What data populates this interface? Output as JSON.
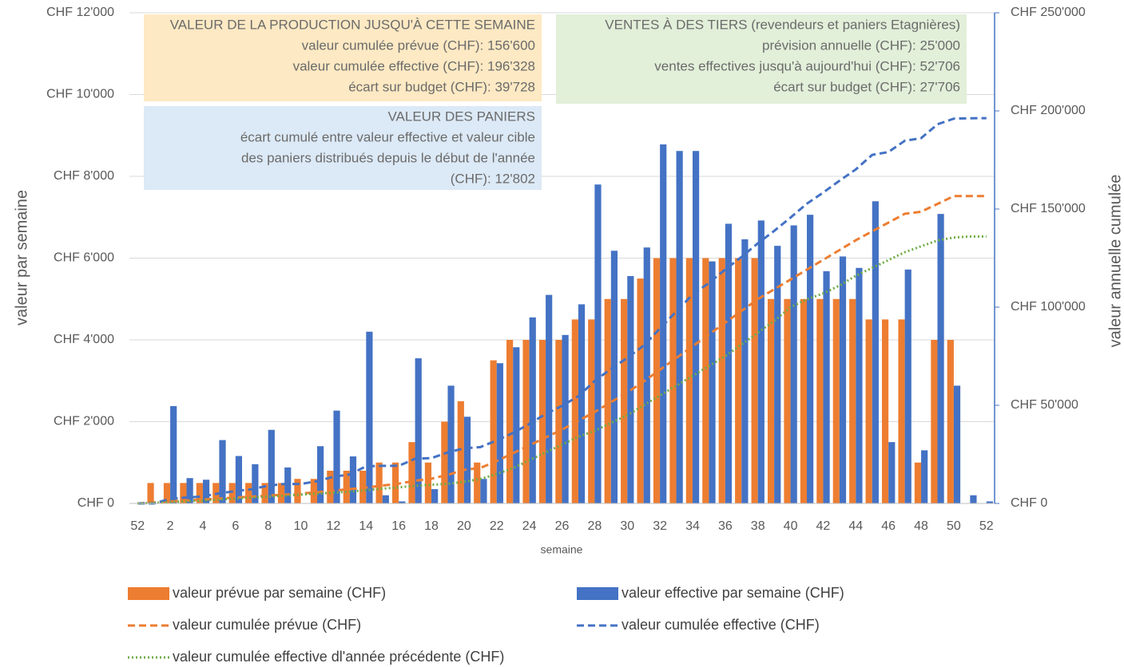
{
  "chart_data": {
    "type": "combo",
    "x_label": "semaine",
    "y_label": "valeur par semaine",
    "y2_label": "valeur annuelle cumulée",
    "categories": [
      "52",
      null,
      "2",
      null,
      "4",
      null,
      "6",
      null,
      "8",
      null,
      "10",
      null,
      "12",
      null,
      "14",
      null,
      "16",
      null,
      "18",
      null,
      "20",
      null,
      "22",
      null,
      "24",
      null,
      "26",
      null,
      "28",
      null,
      "30",
      null,
      "32",
      null,
      "34",
      null,
      "36",
      null,
      "38",
      null,
      "40",
      null,
      "42",
      null,
      "44",
      null,
      "46",
      null,
      "48",
      null,
      "50",
      null,
      "52"
    ],
    "ylim": [
      0,
      12000
    ],
    "yticks": [
      {
        "value": 0,
        "label": "CHF 0"
      },
      {
        "value": 2000,
        "label": "CHF 2'000"
      },
      {
        "value": 4000,
        "label": "CHF 4'000"
      },
      {
        "value": 6000,
        "label": "CHF 6'000"
      },
      {
        "value": 8000,
        "label": "CHF 8'000"
      },
      {
        "value": 10000,
        "label": "CHF 10'000"
      },
      {
        "value": 12000,
        "label": "CHF 12'000"
      }
    ],
    "y2lim": [
      0,
      250000
    ],
    "y2ticks": [
      {
        "value": 0,
        "label": "CHF 0"
      },
      {
        "value": 50000,
        "label": "CHF 50'000"
      },
      {
        "value": 100000,
        "label": "CHF 100'000"
      },
      {
        "value": 150000,
        "label": "CHF 150'000"
      },
      {
        "value": 200000,
        "label": "CHF 200'000"
      },
      {
        "value": 250000,
        "label": "CHF 250'000"
      }
    ],
    "grid": true,
    "series": [
      {
        "name": "valeur prévue par semaine (CHF)",
        "type": "bar",
        "axis": "y",
        "color": "#ed7d31",
        "values": [
          0,
          500,
          500,
          500,
          500,
          500,
          500,
          500,
          500,
          500,
          600,
          600,
          800,
          800,
          800,
          1000,
          1000,
          1500,
          1000,
          2000,
          2500,
          1000,
          3500,
          4000,
          4000,
          4000,
          4000,
          4500,
          4500,
          5000,
          5000,
          5500,
          6000,
          6000,
          6000,
          6000,
          6000,
          6000,
          6000,
          5000,
          5000,
          5000,
          5000,
          5000,
          5000,
          4500,
          4500,
          4500,
          1000,
          4000,
          4000,
          0,
          0
        ]
      },
      {
        "name": "valeur effective par semaine (CHF)",
        "type": "bar",
        "axis": "y",
        "color": "#4472c4",
        "values": [
          0,
          0,
          2380,
          620,
          580,
          1550,
          1160,
          960,
          1800,
          880,
          0,
          1400,
          2270,
          1150,
          4200,
          200,
          50,
          3550,
          350,
          2880,
          2120,
          600,
          3430,
          3820,
          4550,
          5100,
          4120,
          4870,
          7800,
          6180,
          5560,
          6260,
          8780,
          8620,
          8620,
          5920,
          6840,
          6460,
          6920,
          6300,
          6800,
          7060,
          5680,
          6040,
          5760,
          7390,
          1500,
          5720,
          1300,
          7080,
          2880,
          200,
          50
        ]
      },
      {
        "name": "valeur cumulée prévue (CHF)",
        "type": "line",
        "axis": "y2",
        "color": "#ed7d31",
        "dash": "dashed",
        "values": [
          0,
          500,
          1000,
          1500,
          2000,
          2500,
          3000,
          3500,
          4000,
          4500,
          5100,
          5700,
          6500,
          7300,
          8100,
          9100,
          10100,
          11600,
          12600,
          14600,
          17100,
          18100,
          21600,
          25600,
          29600,
          33600,
          37600,
          42100,
          46600,
          51600,
          56600,
          62100,
          68100,
          74100,
          80100,
          86100,
          92100,
          98100,
          104100,
          109100,
          114100,
          119100,
          124100,
          129100,
          134100,
          138600,
          143100,
          147600,
          148600,
          152600,
          156600,
          156600,
          156600
        ]
      },
      {
        "name": "valeur cumulée effective (CHF)",
        "type": "line",
        "axis": "y2",
        "color": "#4472c4",
        "dash": "dashed",
        "values": [
          0,
          0,
          2380,
          3000,
          3580,
          5130,
          6290,
          7250,
          9050,
          9930,
          9930,
          11330,
          13600,
          14750,
          18950,
          19150,
          19200,
          22750,
          23100,
          25980,
          28100,
          28700,
          32130,
          35950,
          40500,
          45600,
          49720,
          54590,
          62390,
          68570,
          74130,
          80390,
          89170,
          97790,
          106410,
          112330,
          119170,
          125630,
          132550,
          138850,
          145650,
          152710,
          158390,
          164430,
          170190,
          177580,
          179080,
          184800,
          186100,
          193180,
          196060,
          196260,
          196310
        ]
      },
      {
        "name": "valeur cumulée effective dl'année précédente (CHF)",
        "type": "line",
        "axis": "y2",
        "color": "#70ad47",
        "dash": "dotted",
        "values": [
          0,
          300,
          700,
          1100,
          1500,
          2000,
          2500,
          3000,
          3500,
          4000,
          4500,
          5000,
          5500,
          6000,
          6800,
          7500,
          8200,
          9000,
          9500,
          10000,
          11000,
          12500,
          15000,
          18000,
          22000,
          26000,
          30000,
          34000,
          37000,
          41000,
          45000,
          50000,
          55000,
          60000,
          65000,
          70000,
          75000,
          81000,
          87000,
          93000,
          100000,
          104000,
          107000,
          111000,
          116000,
          120000,
          124000,
          128000,
          131000,
          134000,
          135500,
          136000,
          136000
        ]
      }
    ],
    "annotations": [
      {
        "color": "#fde9c3",
        "lines": [
          "VALEUR DE LA PRODUCTION JUSQU'À CETTE SEMAINE",
          "valeur cumulée prévue (CHF): 156'600",
          "valeur cumulée effective (CHF): 196'328",
          "écart sur budget (CHF): 39'728"
        ]
      },
      {
        "color": "#e2efd9",
        "lines": [
          "VENTES À DES TIERS (revendeurs et paniers Etagnières)",
          "prévision annuelle (CHF): 25'000",
          "ventes effectives jusqu'à aujourd'hui (CHF): 52'706",
          "écart sur budget (CHF): 27'706"
        ]
      },
      {
        "color": "#dce9f6",
        "lines": [
          "VALEUR DES PANIERS",
          "écart cumulé entre valeur effective et valeur cible",
          "des paniers distribués depuis le début de l'année",
          "(CHF): 12'802"
        ]
      }
    ]
  }
}
